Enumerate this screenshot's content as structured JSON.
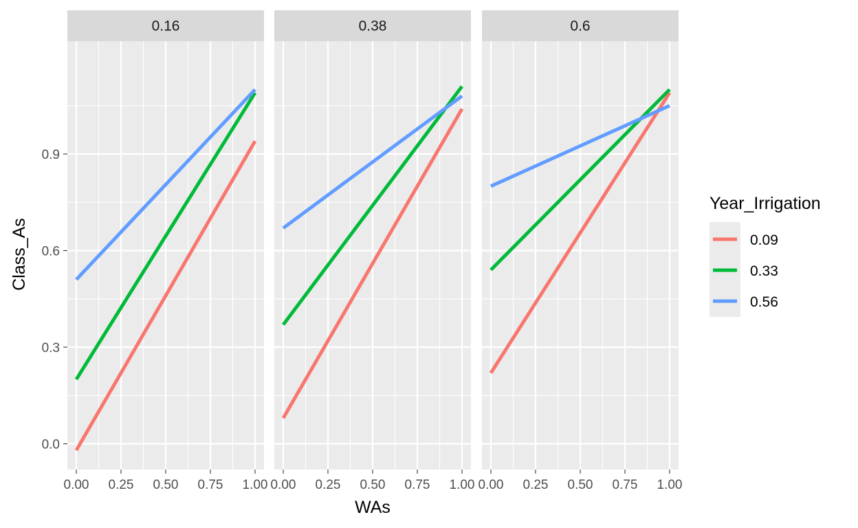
{
  "chart_data": {
    "type": "line",
    "xlabel": "WAs",
    "ylabel": "Class_As",
    "xlim": [
      -0.05,
      1.05
    ],
    "ylim": [
      -0.08,
      1.25
    ],
    "x_ticks": [
      0.0,
      0.25,
      0.5,
      0.75,
      1.0
    ],
    "x_tick_labels": [
      "0.00",
      "0.25",
      "0.50",
      "0.75",
      "1.00"
    ],
    "y_ticks": [
      0.0,
      0.3,
      0.6,
      0.9
    ],
    "y_tick_labels": [
      "0.0",
      "0.3",
      "0.6",
      "0.9"
    ],
    "grid": true,
    "legend": {
      "title": "Year_Irrigation",
      "position": "right",
      "entries": [
        {
          "label": "0.09",
          "color": "#F8766D"
        },
        {
          "label": "0.33",
          "color": "#00BA38"
        },
        {
          "label": "0.56",
          "color": "#619CFF"
        }
      ]
    },
    "panels": [
      {
        "label": "0.16",
        "series": [
          {
            "name": "0.09",
            "color": "#F8766D",
            "x": [
              0,
              1
            ],
            "y": [
              -0.02,
              0.94
            ]
          },
          {
            "name": "0.33",
            "color": "#00BA38",
            "x": [
              0,
              1
            ],
            "y": [
              0.2,
              1.09
            ]
          },
          {
            "name": "0.56",
            "color": "#619CFF",
            "x": [
              0,
              1
            ],
            "y": [
              0.51,
              1.1
            ]
          }
        ]
      },
      {
        "label": "0.38",
        "series": [
          {
            "name": "0.09",
            "color": "#F8766D",
            "x": [
              0,
              1
            ],
            "y": [
              0.08,
              1.04
            ]
          },
          {
            "name": "0.33",
            "color": "#00BA38",
            "x": [
              0,
              1
            ],
            "y": [
              0.37,
              1.11
            ]
          },
          {
            "name": "0.56",
            "color": "#619CFF",
            "x": [
              0,
              1
            ],
            "y": [
              0.67,
              1.08
            ]
          }
        ]
      },
      {
        "label": "0.6",
        "series": [
          {
            "name": "0.09",
            "color": "#F8766D",
            "x": [
              0,
              1
            ],
            "y": [
              0.22,
              1.09
            ]
          },
          {
            "name": "0.33",
            "color": "#00BA38",
            "x": [
              0,
              1
            ],
            "y": [
              0.54,
              1.1
            ]
          },
          {
            "name": "0.56",
            "color": "#619CFF",
            "x": [
              0,
              1
            ],
            "y": [
              0.8,
              1.05
            ]
          }
        ]
      }
    ]
  }
}
